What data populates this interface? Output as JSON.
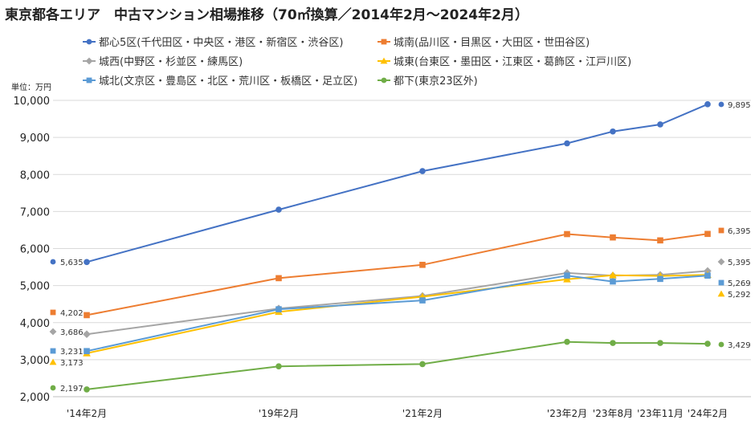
{
  "chart_data": {
    "type": "line",
    "title": "東京都各エリア　中古マンション相場推移（70㎡換算／2014年2月～2024年2月）",
    "unit_label": "単位：万円",
    "categories": [
      "'14年2月",
      "'19年2月",
      "'21年2月",
      "'23年2月",
      "'23年8月",
      "'23年11月",
      "'24年2月"
    ],
    "ylim": [
      2000,
      10000
    ],
    "yticks": [
      "2,000",
      "3,000",
      "4,000",
      "5,000",
      "6,000",
      "7,000",
      "8,000",
      "9,000",
      "10,000"
    ],
    "grid": true,
    "legend_position": "top",
    "series": [
      {
        "name": "都心5区(千代田区・中央区・港区・新宿区・渋谷区)",
        "color": "#4472C4",
        "marker": "circle",
        "values": [
          5635,
          7050,
          8090,
          8840,
          9160,
          9350,
          9895
        ],
        "start_label": "5,635",
        "end_label": "9,895"
      },
      {
        "name": "城南(品川区・目黒区・大田区・世田谷区)",
        "color": "#ED7D31",
        "marker": "square",
        "values": [
          4202,
          5200,
          5560,
          6390,
          6300,
          6220,
          6395
        ],
        "start_label": "4,202",
        "end_label": "6,395"
      },
      {
        "name": "城西(中野区・杉並区・練馬区)",
        "color": "#A5A5A5",
        "marker": "diamond",
        "values": [
          3686,
          4380,
          4720,
          5340,
          5270,
          5290,
          5395
        ],
        "start_label": "3,686",
        "end_label": "5,395"
      },
      {
        "name": "城東(台東区・墨田区・江東区・葛飾区・江戸川区)",
        "color": "#FFC000",
        "marker": "triangle",
        "values": [
          3173,
          4290,
          4700,
          5170,
          5280,
          5260,
          5292
        ],
        "start_label": "3,173",
        "end_label": "5,292"
      },
      {
        "name": "城北(文京区・豊島区・北区・荒川区・板橋区・足立区)",
        "color": "#5B9BD5",
        "marker": "square",
        "values": [
          3231,
          4360,
          4600,
          5270,
          5110,
          5180,
          5269
        ],
        "start_label": "3,231",
        "end_label": "5,269"
      },
      {
        "name": "都下(東京23区外)",
        "color": "#70AD47",
        "marker": "circle",
        "values": [
          2197,
          2820,
          2880,
          3480,
          3450,
          3450,
          3429
        ],
        "start_label": "2,197",
        "end_label": "3,429"
      }
    ]
  }
}
